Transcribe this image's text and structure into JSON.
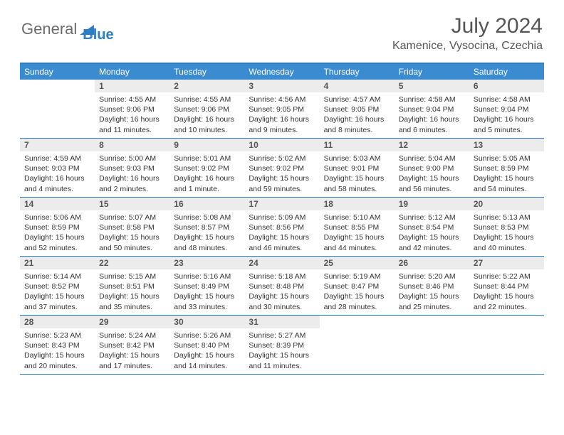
{
  "logo": {
    "text1": "General",
    "text2": "Blue",
    "icon_color": "#2d7dc4"
  },
  "title": "July 2024",
  "location": "Kamenice, Vysocina, Czechia",
  "colors": {
    "header_bar": "#3a8bd0",
    "border": "#2d7dc4",
    "daynum_bg": "#ececec",
    "text": "#333333",
    "title_text": "#555555"
  },
  "weekdays": [
    "Sunday",
    "Monday",
    "Tuesday",
    "Wednesday",
    "Thursday",
    "Friday",
    "Saturday"
  ],
  "first_weekday_index": 1,
  "days": [
    {
      "n": 1,
      "sunrise": "4:55 AM",
      "sunset": "9:06 PM",
      "daylight": "16 hours and 11 minutes."
    },
    {
      "n": 2,
      "sunrise": "4:55 AM",
      "sunset": "9:06 PM",
      "daylight": "16 hours and 10 minutes."
    },
    {
      "n": 3,
      "sunrise": "4:56 AM",
      "sunset": "9:05 PM",
      "daylight": "16 hours and 9 minutes."
    },
    {
      "n": 4,
      "sunrise": "4:57 AM",
      "sunset": "9:05 PM",
      "daylight": "16 hours and 8 minutes."
    },
    {
      "n": 5,
      "sunrise": "4:58 AM",
      "sunset": "9:04 PM",
      "daylight": "16 hours and 6 minutes."
    },
    {
      "n": 6,
      "sunrise": "4:58 AM",
      "sunset": "9:04 PM",
      "daylight": "16 hours and 5 minutes."
    },
    {
      "n": 7,
      "sunrise": "4:59 AM",
      "sunset": "9:03 PM",
      "daylight": "16 hours and 4 minutes."
    },
    {
      "n": 8,
      "sunrise": "5:00 AM",
      "sunset": "9:03 PM",
      "daylight": "16 hours and 2 minutes."
    },
    {
      "n": 9,
      "sunrise": "5:01 AM",
      "sunset": "9:02 PM",
      "daylight": "16 hours and 1 minute."
    },
    {
      "n": 10,
      "sunrise": "5:02 AM",
      "sunset": "9:02 PM",
      "daylight": "15 hours and 59 minutes."
    },
    {
      "n": 11,
      "sunrise": "5:03 AM",
      "sunset": "9:01 PM",
      "daylight": "15 hours and 58 minutes."
    },
    {
      "n": 12,
      "sunrise": "5:04 AM",
      "sunset": "9:00 PM",
      "daylight": "15 hours and 56 minutes."
    },
    {
      "n": 13,
      "sunrise": "5:05 AM",
      "sunset": "8:59 PM",
      "daylight": "15 hours and 54 minutes."
    },
    {
      "n": 14,
      "sunrise": "5:06 AM",
      "sunset": "8:59 PM",
      "daylight": "15 hours and 52 minutes."
    },
    {
      "n": 15,
      "sunrise": "5:07 AM",
      "sunset": "8:58 PM",
      "daylight": "15 hours and 50 minutes."
    },
    {
      "n": 16,
      "sunrise": "5:08 AM",
      "sunset": "8:57 PM",
      "daylight": "15 hours and 48 minutes."
    },
    {
      "n": 17,
      "sunrise": "5:09 AM",
      "sunset": "8:56 PM",
      "daylight": "15 hours and 46 minutes."
    },
    {
      "n": 18,
      "sunrise": "5:10 AM",
      "sunset": "8:55 PM",
      "daylight": "15 hours and 44 minutes."
    },
    {
      "n": 19,
      "sunrise": "5:12 AM",
      "sunset": "8:54 PM",
      "daylight": "15 hours and 42 minutes."
    },
    {
      "n": 20,
      "sunrise": "5:13 AM",
      "sunset": "8:53 PM",
      "daylight": "15 hours and 40 minutes."
    },
    {
      "n": 21,
      "sunrise": "5:14 AM",
      "sunset": "8:52 PM",
      "daylight": "15 hours and 37 minutes."
    },
    {
      "n": 22,
      "sunrise": "5:15 AM",
      "sunset": "8:51 PM",
      "daylight": "15 hours and 35 minutes."
    },
    {
      "n": 23,
      "sunrise": "5:16 AM",
      "sunset": "8:49 PM",
      "daylight": "15 hours and 33 minutes."
    },
    {
      "n": 24,
      "sunrise": "5:18 AM",
      "sunset": "8:48 PM",
      "daylight": "15 hours and 30 minutes."
    },
    {
      "n": 25,
      "sunrise": "5:19 AM",
      "sunset": "8:47 PM",
      "daylight": "15 hours and 28 minutes."
    },
    {
      "n": 26,
      "sunrise": "5:20 AM",
      "sunset": "8:46 PM",
      "daylight": "15 hours and 25 minutes."
    },
    {
      "n": 27,
      "sunrise": "5:22 AM",
      "sunset": "8:44 PM",
      "daylight": "15 hours and 22 minutes."
    },
    {
      "n": 28,
      "sunrise": "5:23 AM",
      "sunset": "8:43 PM",
      "daylight": "15 hours and 20 minutes."
    },
    {
      "n": 29,
      "sunrise": "5:24 AM",
      "sunset": "8:42 PM",
      "daylight": "15 hours and 17 minutes."
    },
    {
      "n": 30,
      "sunrise": "5:26 AM",
      "sunset": "8:40 PM",
      "daylight": "15 hours and 14 minutes."
    },
    {
      "n": 31,
      "sunrise": "5:27 AM",
      "sunset": "8:39 PM",
      "daylight": "15 hours and 11 minutes."
    }
  ],
  "labels": {
    "sunrise": "Sunrise:",
    "sunset": "Sunset:",
    "daylight": "Daylight:"
  }
}
